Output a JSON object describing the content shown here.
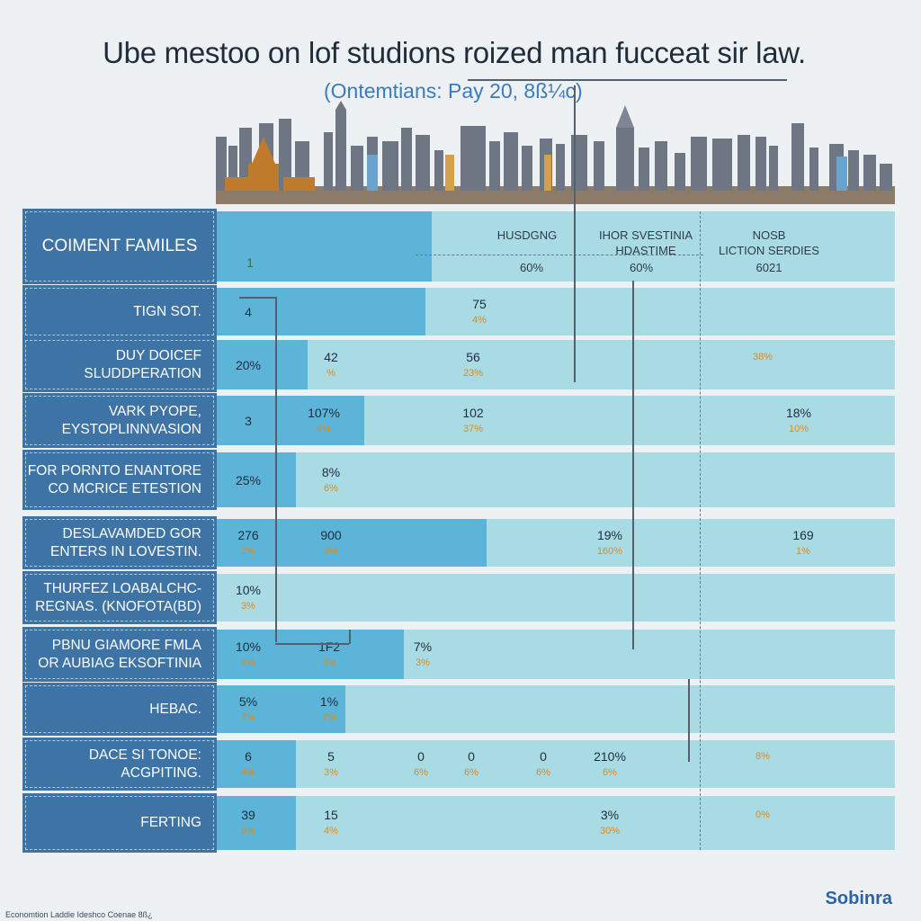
{
  "title": "Ube mestoo on lof studions roized man fucceat sir law.",
  "subtitle": "(Ontemtians: Pay 20, 8ß¼c)",
  "brand": "Sobinra",
  "footnote": "Economtion Laddie Ideshco Coenae 8ß¿",
  "colors": {
    "label_bg": "#3e73a6",
    "row_bg": "#a9dbe5",
    "bar": "#5cb4d8",
    "pct_text": "#e08a1a",
    "brand": "#2d63a6"
  },
  "chart_data": {
    "type": "table",
    "title": "Ube mestoo on lof studions roized man fucceat sir law.",
    "subtitle": "(Ontemtians: Pay 20, 8ß¼c)",
    "header": {
      "label": "COIMENT FAMILES",
      "first_cell": "1",
      "columns": [
        {
          "name": "HUSDGNG",
          "value": "60%"
        },
        {
          "name": "IHOR SVESTINIA\nHDASTIME",
          "value": "60%"
        },
        {
          "name": "NOSB\nLICTION SERDIES",
          "value": "6021"
        }
      ],
      "bar_fraction": 0.32
    },
    "rows": [
      {
        "label": "TIGN SOT.",
        "bar_fraction": 0.31,
        "cells": [
          {
            "v": "4"
          },
          {
            "v": "75",
            "p": "4%"
          }
        ]
      },
      {
        "label": "DUY DOICEF\nSLUDDPERATION",
        "bar_fraction": 0.137,
        "cells": [
          {
            "v": "20%"
          },
          {
            "v": "42",
            "p": "%"
          },
          {
            "v": "56",
            "p": "23%"
          },
          {
            "v": "",
            "p": "38%"
          }
        ]
      },
      {
        "label": "VARK PYOPE,\nEYSTOPLINNVASION",
        "bar_fraction": 0.22,
        "cells": [
          {
            "v": "3"
          },
          {
            "v": "107%",
            "p": "6%"
          },
          {
            "v": "102",
            "p": "37%"
          },
          {
            "v": "18%",
            "p": "10%"
          }
        ]
      },
      {
        "label": "FOR PORNTO ENANTORE\nCO MCRICE ETESTION",
        "bar_fraction": 0.12,
        "cells": [
          {
            "v": "25%"
          },
          {
            "v": "8%",
            "p": "6%"
          }
        ]
      },
      {
        "label": "DESLAVAMDED GOR\nENTERS IN LOVESTIN.",
        "bar_fraction": 0.4,
        "cells": [
          {
            "v": "276",
            "p": "2%"
          },
          {
            "v": "900",
            "p": "3%"
          },
          {
            "v": "19%",
            "p": "160%"
          },
          {
            "v": "169",
            "p": "1%"
          }
        ]
      },
      {
        "label": "THURFEZ LOABALCHC-\nREGNAS. (KNOFOTA(BD)",
        "bar_fraction": 0.0,
        "cells": [
          {
            "v": "10%",
            "p": "3%"
          }
        ]
      },
      {
        "label": "PBNU GIAMORE FMLA\nOR AUBIAG EKSOFTINIA",
        "bar_fraction": 0.279,
        "cells": [
          {
            "v": "10%",
            "p": "3%"
          },
          {
            "v": "1F2",
            "p": "3%"
          },
          {
            "v": "7%",
            "p": "3%"
          }
        ]
      },
      {
        "label": "HEBAC.",
        "bar_fraction": 0.193,
        "cells": [
          {
            "v": "5%",
            "p": "7%"
          },
          {
            "v": "1%",
            "p": "7%"
          }
        ]
      },
      {
        "label": "DACE SI TONOE:\nACGPITING.",
        "bar_fraction": 0.12,
        "cells": [
          {
            "v": "6",
            "p": "4%"
          },
          {
            "v": "5",
            "p": "3%"
          },
          {
            "v": "0",
            "p": "6%"
          },
          {
            "v": "0",
            "p": "6%"
          },
          {
            "v": "0",
            "p": "6%"
          },
          {
            "v": "210%",
            "p": "6%"
          },
          {
            "v": "",
            "p": "8%"
          }
        ]
      },
      {
        "label": "FERTING",
        "bar_fraction": 0.12,
        "cells": [
          {
            "v": "39",
            "p": "5%"
          },
          {
            "v": "15",
            "p": "4%"
          },
          {
            "v": "3%",
            "p": "30%"
          },
          {
            "v": "",
            "p": "0%"
          }
        ]
      }
    ]
  }
}
